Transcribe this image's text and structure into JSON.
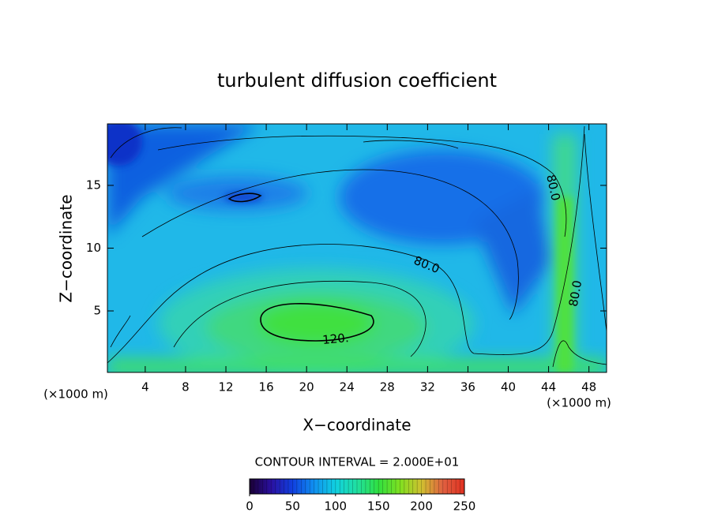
{
  "chart_data": {
    "type": "contour",
    "title": "turbulent diffusion coefficient",
    "x_label": "X−coordinate",
    "y_label": "Z−coordinate",
    "x_unit_label": "(×1000 m)",
    "x_unit_label_right": "(×1000 m)",
    "xlim": [
      0.25,
      49.75
    ],
    "ylim": [
      0.1,
      19.9
    ],
    "xticks": [
      4,
      8,
      12,
      16,
      20,
      24,
      28,
      32,
      36,
      40,
      44,
      48
    ],
    "yticks": [
      5,
      10,
      15
    ],
    "contour_labels": [
      "80.0",
      "80.0",
      "80.0",
      "120."
    ],
    "contour_interval_text": "CONTOUR INTERVAL = 2.000E+01",
    "colorbar": {
      "lim": [
        0,
        250
      ],
      "ticks": [
        0,
        50,
        100,
        150,
        200,
        250
      ],
      "colors": [
        "#1a0033",
        "#2a10a0",
        "#1040e0",
        "#1090f0",
        "#10d0e0",
        "#20e0a0",
        "#30e040",
        "#80e020",
        "#d0c030",
        "#e06040",
        "#e03020"
      ]
    }
  }
}
